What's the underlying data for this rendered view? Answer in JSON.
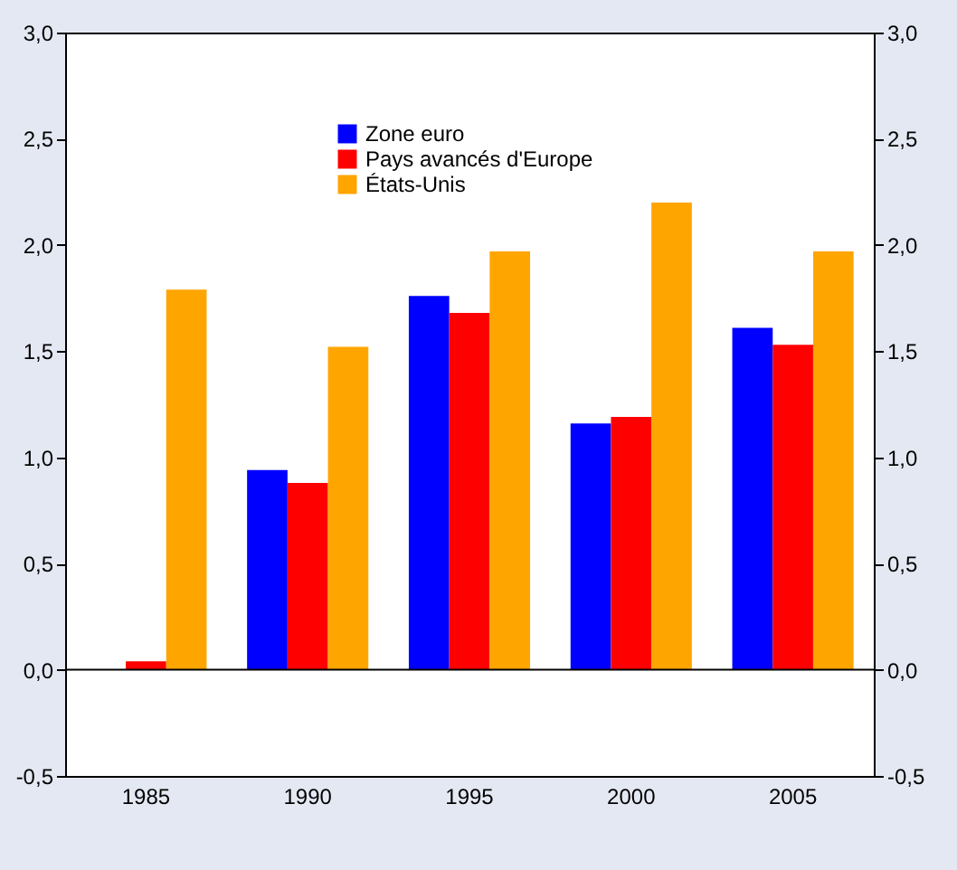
{
  "chart_data": {
    "type": "bar",
    "categories": [
      "1985",
      "1990",
      "1995",
      "2000",
      "2005"
    ],
    "series": [
      {
        "name": "Zone euro",
        "color": "#0000ff",
        "values": [
          null,
          0.94,
          1.76,
          1.16,
          1.61
        ]
      },
      {
        "name": "Pays avancés d'Europe",
        "color": "#ff0000",
        "values": [
          0.04,
          0.88,
          1.68,
          1.19,
          1.53
        ]
      },
      {
        "name": "États-Unis",
        "color": "#ffa500",
        "values": [
          1.79,
          1.52,
          1.97,
          2.2,
          1.97
        ]
      }
    ],
    "ylim": [
      -0.5,
      3
    ],
    "yticks": [
      {
        "value": -0.5,
        "label": "-0,5"
      },
      {
        "value": 0,
        "label": "0,0"
      },
      {
        "value": 0.5,
        "label": "0,5"
      },
      {
        "value": 1,
        "label": "1,0"
      },
      {
        "value": 1.5,
        "label": "1,5"
      },
      {
        "value": 2,
        "label": "2,0"
      },
      {
        "value": 2.5,
        "label": "2,5"
      },
      {
        "value": 3,
        "label": "3,0"
      }
    ],
    "y2lim": [
      -0.5,
      3
    ],
    "y2ticks": [
      {
        "value": -0.5,
        "label": "-0,5"
      },
      {
        "value": 0,
        "label": "0,0"
      },
      {
        "value": 0.5,
        "label": "0,5"
      },
      {
        "value": 1,
        "label": "1,0"
      },
      {
        "value": 1.5,
        "label": "1,5"
      },
      {
        "value": 2,
        "label": "2,0"
      },
      {
        "value": 2.5,
        "label": "2,5"
      },
      {
        "value": 3,
        "label": "3,0"
      }
    ],
    "ref_lines": [
      {
        "axis": "y",
        "value": 0,
        "color": "#000000"
      }
    ],
    "grid": false,
    "legend": "top"
  }
}
